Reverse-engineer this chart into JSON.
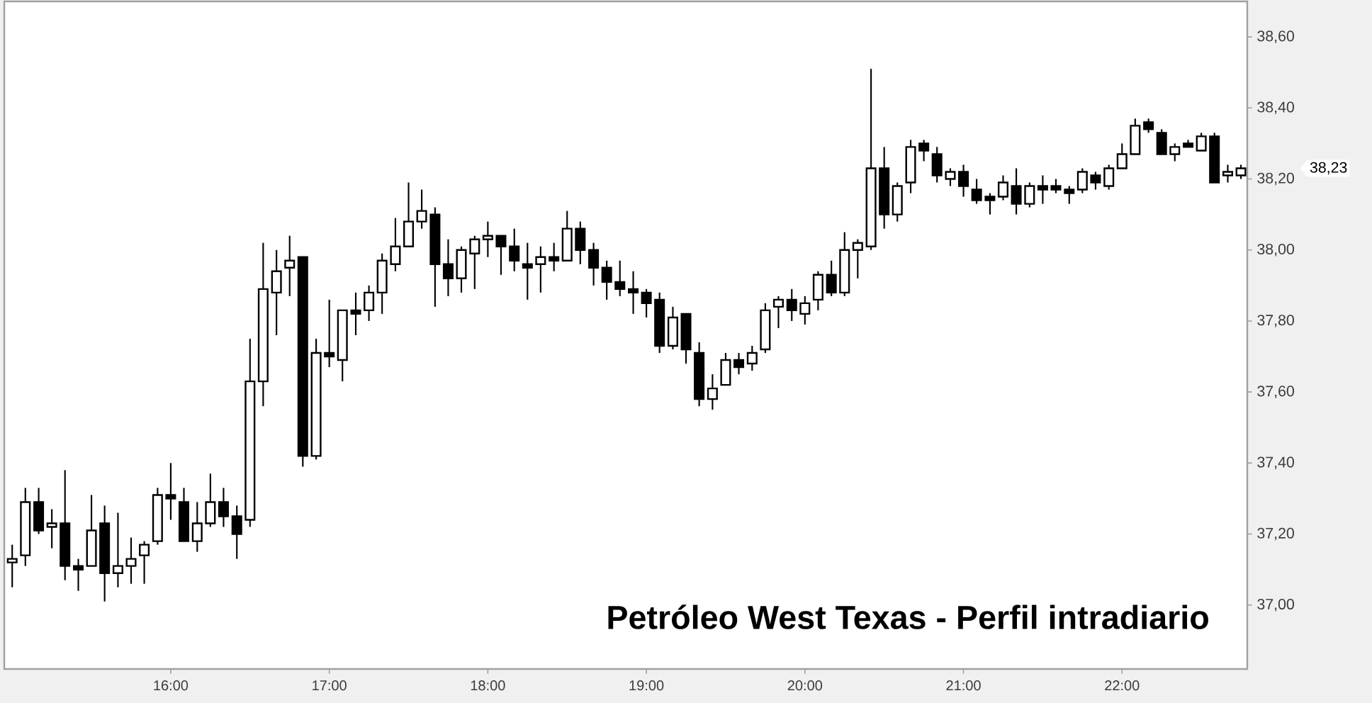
{
  "chart_data": {
    "type": "candlestick",
    "title": "Petróleo West Texas - Perfil intradiario",
    "x": [
      15.0,
      15.083,
      15.167,
      15.25,
      15.333,
      15.417,
      15.5,
      15.583,
      15.667,
      15.75,
      15.833,
      15.917,
      16.0,
      16.083,
      16.167,
      16.25,
      16.333,
      16.417,
      16.5,
      16.583,
      16.667,
      16.75,
      16.833,
      16.917,
      17.0,
      17.083,
      17.167,
      17.25,
      17.333,
      17.417,
      17.5,
      17.583,
      17.667,
      17.75,
      17.833,
      17.917,
      18.0,
      18.083,
      18.167,
      18.25,
      18.333,
      18.417,
      18.5,
      18.583,
      18.667,
      18.75,
      18.833,
      18.917,
      19.0,
      19.083,
      19.167,
      19.25,
      19.333,
      19.417,
      19.5,
      19.583,
      19.667,
      19.75,
      19.833,
      19.917,
      20.0,
      20.083,
      20.167,
      20.25,
      20.333,
      20.417,
      20.5,
      20.583,
      20.667,
      20.75,
      20.833,
      20.917,
      21.0,
      21.083,
      21.167,
      21.25,
      21.333,
      21.417,
      21.5,
      21.583,
      21.667,
      21.75,
      21.833,
      21.917,
      22.0,
      22.083,
      22.167,
      22.25,
      22.333,
      22.417,
      22.5,
      22.583,
      22.667,
      22.75
    ],
    "ohlc": [
      [
        37.12,
        37.17,
        37.05,
        37.13
      ],
      [
        37.14,
        37.33,
        37.11,
        37.29
      ],
      [
        37.29,
        37.33,
        37.2,
        37.21
      ],
      [
        37.22,
        37.27,
        37.16,
        37.23
      ],
      [
        37.23,
        37.38,
        37.07,
        37.11
      ],
      [
        37.11,
        37.13,
        37.04,
        37.1
      ],
      [
        37.11,
        37.31,
        37.11,
        37.21
      ],
      [
        37.23,
        37.28,
        37.01,
        37.09
      ],
      [
        37.09,
        37.26,
        37.05,
        37.11
      ],
      [
        37.11,
        37.19,
        37.06,
        37.13
      ],
      [
        37.14,
        37.18,
        37.06,
        37.17
      ],
      [
        37.18,
        37.33,
        37.17,
        37.31
      ],
      [
        37.31,
        37.4,
        37.24,
        37.3
      ],
      [
        37.29,
        37.33,
        37.18,
        37.18
      ],
      [
        37.18,
        37.29,
        37.15,
        37.23
      ],
      [
        37.23,
        37.37,
        37.22,
        37.29
      ],
      [
        37.29,
        37.33,
        37.22,
        37.25
      ],
      [
        37.25,
        37.28,
        37.13,
        37.2
      ],
      [
        37.24,
        37.75,
        37.22,
        37.63
      ],
      [
        37.63,
        38.02,
        37.56,
        37.89
      ],
      [
        37.88,
        38.0,
        37.76,
        37.94
      ],
      [
        37.95,
        38.04,
        37.87,
        37.97
      ],
      [
        37.98,
        37.98,
        37.39,
        37.42
      ],
      [
        37.42,
        37.75,
        37.41,
        37.71
      ],
      [
        37.71,
        37.86,
        37.67,
        37.7
      ],
      [
        37.69,
        37.83,
        37.63,
        37.83
      ],
      [
        37.83,
        37.88,
        37.76,
        37.82
      ],
      [
        37.83,
        37.9,
        37.8,
        37.88
      ],
      [
        37.88,
        37.99,
        37.82,
        37.97
      ],
      [
        37.96,
        38.09,
        37.94,
        38.01
      ],
      [
        38.01,
        38.19,
        38.01,
        38.08
      ],
      [
        38.08,
        38.17,
        38.06,
        38.11
      ],
      [
        38.1,
        38.12,
        37.84,
        37.96
      ],
      [
        37.96,
        38.03,
        37.87,
        37.92
      ],
      [
        37.92,
        38.01,
        37.88,
        38.0
      ],
      [
        37.99,
        38.04,
        37.89,
        38.03
      ],
      [
        38.03,
        38.08,
        37.98,
        38.04
      ],
      [
        38.04,
        38.04,
        37.93,
        38.01
      ],
      [
        38.01,
        38.06,
        37.94,
        37.97
      ],
      [
        37.96,
        38.02,
        37.86,
        37.95
      ],
      [
        37.96,
        38.01,
        37.88,
        37.98
      ],
      [
        37.98,
        38.02,
        37.94,
        37.97
      ],
      [
        37.97,
        38.11,
        37.97,
        38.06
      ],
      [
        38.06,
        38.08,
        37.96,
        38.0
      ],
      [
        38.0,
        38.02,
        37.9,
        37.95
      ],
      [
        37.95,
        37.97,
        37.86,
        37.91
      ],
      [
        37.91,
        37.97,
        37.87,
        37.89
      ],
      [
        37.89,
        37.94,
        37.82,
        37.88
      ],
      [
        37.88,
        37.89,
        37.81,
        37.85
      ],
      [
        37.86,
        37.88,
        37.71,
        37.73
      ],
      [
        37.73,
        37.84,
        37.72,
        37.81
      ],
      [
        37.82,
        37.82,
        37.68,
        37.72
      ],
      [
        37.71,
        37.74,
        37.56,
        37.58
      ],
      [
        37.58,
        37.65,
        37.55,
        37.61
      ],
      [
        37.62,
        37.71,
        37.62,
        37.69
      ],
      [
        37.69,
        37.71,
        37.65,
        37.67
      ],
      [
        37.68,
        37.73,
        37.66,
        37.71
      ],
      [
        37.72,
        37.85,
        37.71,
        37.83
      ],
      [
        37.84,
        37.87,
        37.78,
        37.86
      ],
      [
        37.86,
        37.89,
        37.8,
        37.83
      ],
      [
        37.82,
        37.87,
        37.79,
        37.85
      ],
      [
        37.86,
        37.94,
        37.83,
        37.93
      ],
      [
        37.93,
        37.97,
        37.87,
        37.88
      ],
      [
        37.88,
        38.05,
        37.87,
        38.0
      ],
      [
        38.0,
        38.03,
        37.92,
        38.02
      ],
      [
        38.01,
        38.51,
        38.0,
        38.23
      ],
      [
        38.23,
        38.29,
        38.06,
        38.1
      ],
      [
        38.1,
        38.19,
        38.08,
        38.18
      ],
      [
        38.19,
        38.31,
        38.16,
        38.29
      ],
      [
        38.3,
        38.31,
        38.25,
        38.28
      ],
      [
        38.27,
        38.29,
        38.19,
        38.21
      ],
      [
        38.2,
        38.23,
        38.18,
        38.22
      ],
      [
        38.22,
        38.24,
        38.15,
        38.18
      ],
      [
        38.17,
        38.2,
        38.13,
        38.14
      ],
      [
        38.15,
        38.16,
        38.1,
        38.14
      ],
      [
        38.15,
        38.21,
        38.14,
        38.19
      ],
      [
        38.18,
        38.23,
        38.1,
        38.13
      ],
      [
        38.13,
        38.19,
        38.12,
        38.18
      ],
      [
        38.18,
        38.21,
        38.13,
        38.17
      ],
      [
        38.18,
        38.2,
        38.16,
        38.17
      ],
      [
        38.17,
        38.18,
        38.13,
        38.16
      ],
      [
        38.17,
        38.23,
        38.16,
        38.22
      ],
      [
        38.21,
        38.22,
        38.17,
        38.19
      ],
      [
        38.18,
        38.24,
        38.17,
        38.23
      ],
      [
        38.23,
        38.3,
        38.23,
        38.27
      ],
      [
        38.27,
        38.37,
        38.27,
        38.35
      ],
      [
        38.36,
        38.37,
        38.33,
        38.34
      ],
      [
        38.33,
        38.34,
        38.27,
        38.27
      ],
      [
        38.27,
        38.3,
        38.25,
        38.29
      ],
      [
        38.3,
        38.31,
        38.29,
        38.29
      ],
      [
        38.28,
        38.33,
        38.28,
        38.32
      ],
      [
        38.32,
        38.33,
        38.19,
        38.19
      ],
      [
        38.21,
        38.24,
        38.19,
        38.22
      ],
      [
        38.21,
        38.24,
        38.2,
        38.23
      ]
    ],
    "xlim": [
      14.95,
      22.79
    ],
    "xticks": [
      {
        "value": 16,
        "label": "16:00"
      },
      {
        "value": 17,
        "label": "17:00"
      },
      {
        "value": 18,
        "label": "18:00"
      },
      {
        "value": 19,
        "label": "19:00"
      },
      {
        "value": 20,
        "label": "20:00"
      },
      {
        "value": 21,
        "label": "21:00"
      },
      {
        "value": 22,
        "label": "22:00"
      }
    ],
    "ylim": [
      36.82,
      38.7
    ],
    "yticks": [
      {
        "value": 37,
        "label": "37,00"
      },
      {
        "value": 37.2,
        "label": "37,20"
      },
      {
        "value": 37.4,
        "label": "37,40"
      },
      {
        "value": 37.6,
        "label": "37,60"
      },
      {
        "value": 37.8,
        "label": "37,80"
      },
      {
        "value": 38,
        "label": "38,00"
      },
      {
        "value": 38.2,
        "label": "38,20"
      },
      {
        "value": 38.4,
        "label": "38,40"
      },
      {
        "value": 38.6,
        "label": "38,60"
      }
    ],
    "annotations": [
      "38,23"
    ]
  }
}
